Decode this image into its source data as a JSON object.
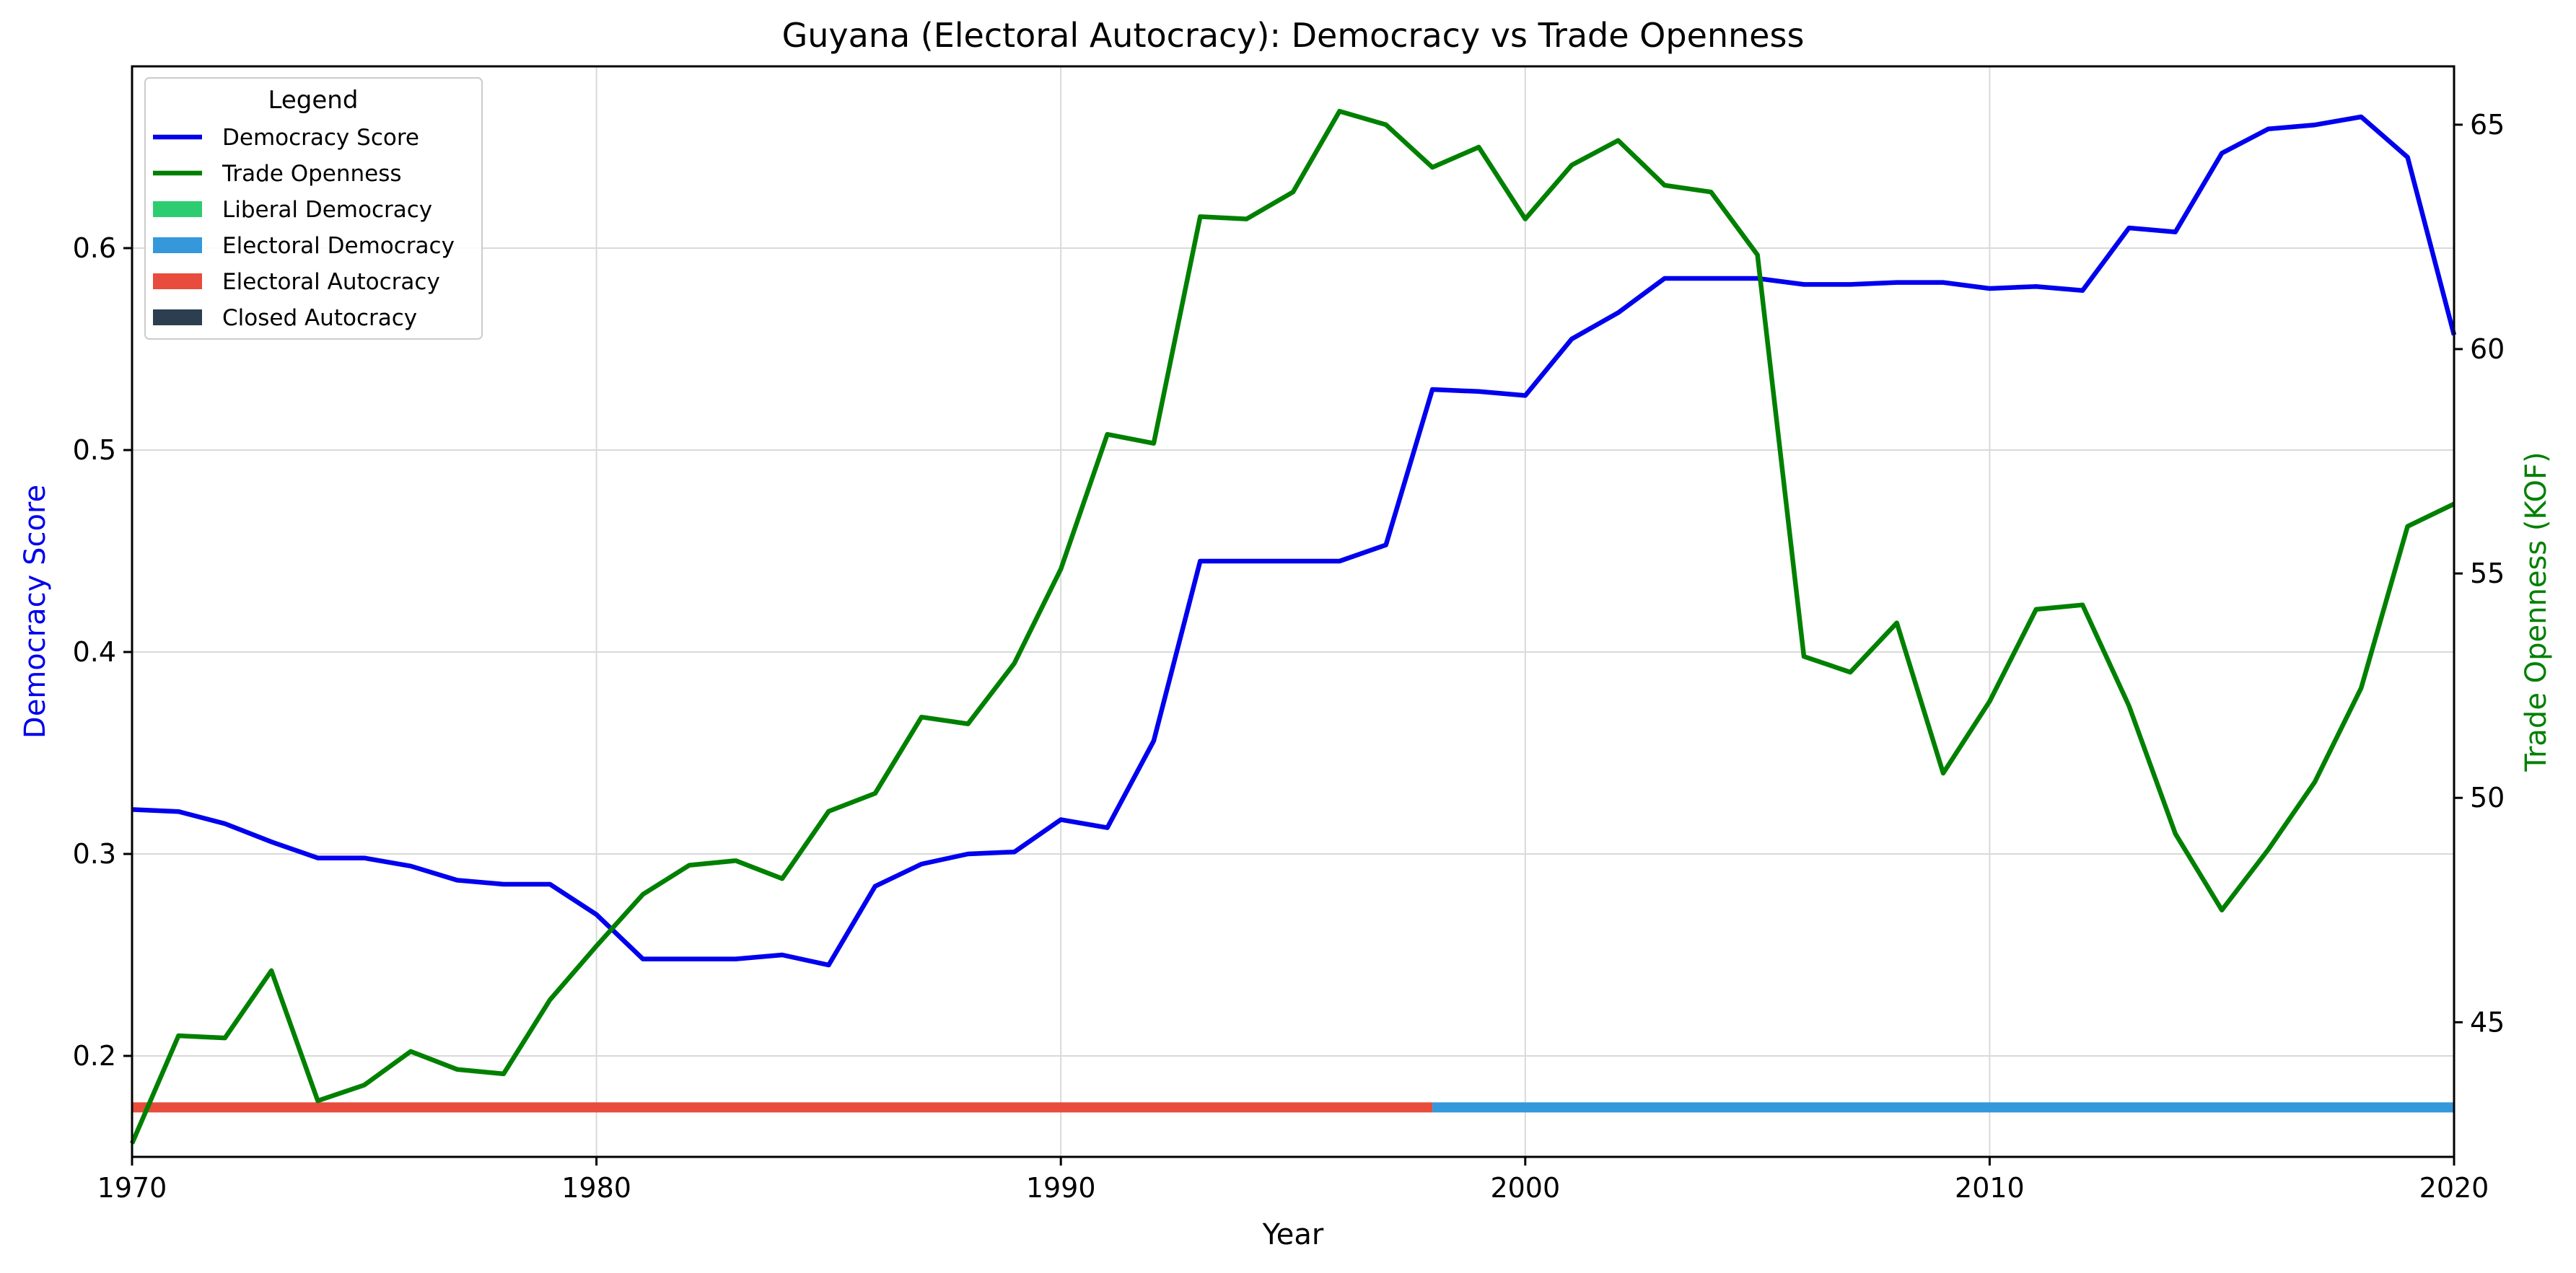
{
  "chart_data": {
    "type": "line",
    "title": "Guyana (Electoral Autocracy): Democracy vs Trade Openness",
    "xlabel": "Year",
    "ylabel_left": "Democracy Score",
    "ylabel_right": "Trade Openness (KOF)",
    "xlim": [
      1970,
      2020
    ],
    "ylim_left": [
      0.15,
      0.69
    ],
    "ylim_right": [
      42,
      66.3
    ],
    "x_ticks": [
      1970,
      1980,
      1990,
      2000,
      2010,
      2020
    ],
    "y_ticks_left": [
      0.2,
      0.3,
      0.4,
      0.5,
      0.6
    ],
    "y_ticks_right": [
      45,
      50,
      55,
      60,
      65
    ],
    "grid": true,
    "legend_position": "upper left",
    "legend_title": "Legend",
    "colors": {
      "democracy": "#0000ee",
      "trade": "#008000",
      "liberal_democracy": "#2ecc71",
      "electoral_democracy": "#3498db",
      "electoral_autocracy": "#e74c3c",
      "closed_autocracy": "#2c3e50"
    },
    "years": [
      1970,
      1971,
      1972,
      1973,
      1974,
      1975,
      1976,
      1977,
      1978,
      1979,
      1980,
      1981,
      1982,
      1983,
      1984,
      1985,
      1986,
      1987,
      1988,
      1989,
      1990,
      1991,
      1992,
      1993,
      1994,
      1995,
      1996,
      1997,
      1998,
      1999,
      2000,
      2001,
      2002,
      2003,
      2004,
      2005,
      2006,
      2007,
      2008,
      2009,
      2010,
      2011,
      2012,
      2013,
      2014,
      2015,
      2016,
      2017,
      2018,
      2019,
      2020
    ],
    "series": [
      {
        "name": "Democracy Score",
        "axis": "left",
        "values": [
          0.322,
          0.321,
          0.315,
          0.306,
          0.298,
          0.298,
          0.294,
          0.287,
          0.285,
          0.285,
          0.27,
          0.248,
          0.248,
          0.248,
          0.25,
          0.245,
          0.284,
          0.295,
          0.3,
          0.301,
          0.317,
          0.313,
          0.356,
          0.445,
          0.445,
          0.445,
          0.445,
          0.453,
          0.53,
          0.529,
          0.527,
          0.555,
          0.568,
          0.585,
          0.585,
          0.585,
          0.582,
          0.582,
          0.583,
          0.583,
          0.58,
          0.581,
          0.579,
          0.61,
          0.608,
          0.647,
          0.659,
          0.661,
          0.665,
          0.645,
          0.557
        ]
      },
      {
        "name": "Trade Openness",
        "axis": "right",
        "values": [
          42.3,
          44.7,
          44.65,
          46.15,
          43.25,
          43.6,
          44.35,
          43.95,
          43.85,
          45.5,
          46.7,
          47.85,
          48.5,
          48.6,
          48.2,
          49.7,
          50.1,
          51.8,
          51.65,
          53.0,
          55.1,
          58.1,
          57.9,
          62.95,
          62.9,
          63.5,
          65.3,
          65.0,
          64.05,
          64.5,
          62.9,
          64.1,
          64.65,
          63.65,
          63.5,
          62.1,
          53.15,
          52.8,
          53.9,
          50.55,
          52.15,
          54.2,
          54.3,
          52.05,
          49.2,
          47.5,
          48.85,
          50.35,
          52.45,
          56.05,
          56.55
        ]
      }
    ],
    "regime_bands": [
      {
        "regime": "Electoral Autocracy",
        "start": 1970,
        "end": 1998
      },
      {
        "regime": "Electoral Democracy",
        "start": 1998,
        "end": 2020
      }
    ],
    "legend": [
      {
        "label": "Democracy Score",
        "kind": "line",
        "color": "#0000ee"
      },
      {
        "label": "Trade Openness",
        "kind": "line",
        "color": "#008000"
      },
      {
        "label": "Liberal Democracy",
        "kind": "patch",
        "color": "#2ecc71"
      },
      {
        "label": "Electoral Democracy",
        "kind": "patch",
        "color": "#3498db"
      },
      {
        "label": "Electoral Autocracy",
        "kind": "patch",
        "color": "#e74c3c"
      },
      {
        "label": "Closed Autocracy",
        "kind": "patch",
        "color": "#2c3e50"
      }
    ]
  }
}
